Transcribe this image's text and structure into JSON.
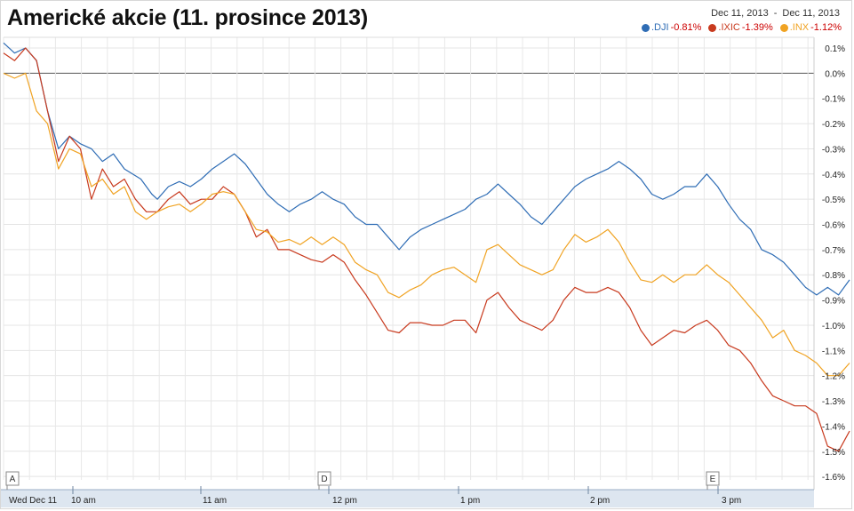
{
  "chart_data": {
    "type": "line",
    "title": "Americké akcie (11. prosince 2013)",
    "date_range": {
      "from": "Dec 11, 2013",
      "separator": "-",
      "to": "Dec 11, 2013"
    },
    "ylim": [
      -1.6,
      0.1
    ],
    "yticks": [
      "0.1%",
      "0.0%",
      "-0.1%",
      "-0.2%",
      "-0.3%",
      "-0.4%",
      "-0.5%",
      "-0.6%",
      "-0.7%",
      "-0.8%",
      "-0.9%",
      "-1.0%",
      "-1.1%",
      "-1.2%",
      "-1.3%",
      "-1.4%",
      "-1.5%",
      "-1.6%"
    ],
    "xticks": [
      "Wed Dec 11",
      "10 am",
      "11 am",
      "12 pm",
      "1 pm",
      "2 pm",
      "3 pm"
    ],
    "flags": [
      "A",
      "D",
      "E"
    ],
    "grid": true,
    "legend_position": "top-right",
    "series": [
      {
        "name": ".DJI",
        "change": "-0.81%",
        "color": "#2f6db5",
        "points": [
          [
            0,
            0.12
          ],
          [
            2,
            0.08
          ],
          [
            4,
            0.1
          ],
          [
            6,
            0.05
          ],
          [
            8,
            -0.15
          ],
          [
            10,
            -0.3
          ],
          [
            12,
            -0.25
          ],
          [
            14,
            -0.28
          ],
          [
            16,
            -0.3
          ],
          [
            18,
            -0.35
          ],
          [
            20,
            -0.32
          ],
          [
            22,
            -0.38
          ],
          [
            25,
            -0.42
          ],
          [
            27,
            -0.48
          ],
          [
            28,
            -0.5
          ],
          [
            30,
            -0.45
          ],
          [
            32,
            -0.43
          ],
          [
            34,
            -0.45
          ],
          [
            36,
            -0.42
          ],
          [
            38,
            -0.38
          ],
          [
            40,
            -0.35
          ],
          [
            42,
            -0.32
          ],
          [
            44,
            -0.36
          ],
          [
            46,
            -0.42
          ],
          [
            48,
            -0.48
          ],
          [
            50,
            -0.52
          ],
          [
            52,
            -0.55
          ],
          [
            54,
            -0.52
          ],
          [
            56,
            -0.5
          ],
          [
            58,
            -0.47
          ],
          [
            60,
            -0.5
          ],
          [
            62,
            -0.52
          ],
          [
            64,
            -0.57
          ],
          [
            66,
            -0.6
          ],
          [
            68,
            -0.6
          ],
          [
            70,
            -0.65
          ],
          [
            72,
            -0.7
          ],
          [
            74,
            -0.65
          ],
          [
            76,
            -0.62
          ],
          [
            78,
            -0.6
          ],
          [
            80,
            -0.58
          ],
          [
            82,
            -0.56
          ],
          [
            84,
            -0.54
          ],
          [
            86,
            -0.5
          ],
          [
            88,
            -0.48
          ],
          [
            90,
            -0.44
          ],
          [
            92,
            -0.48
          ],
          [
            94,
            -0.52
          ],
          [
            96,
            -0.57
          ],
          [
            98,
            -0.6
          ],
          [
            100,
            -0.55
          ],
          [
            102,
            -0.5
          ],
          [
            104,
            -0.45
          ],
          [
            106,
            -0.42
          ],
          [
            108,
            -0.4
          ],
          [
            110,
            -0.38
          ],
          [
            112,
            -0.35
          ],
          [
            114,
            -0.38
          ],
          [
            116,
            -0.42
          ],
          [
            118,
            -0.48
          ],
          [
            120,
            -0.5
          ],
          [
            122,
            -0.48
          ],
          [
            124,
            -0.45
          ],
          [
            126,
            -0.45
          ],
          [
            128,
            -0.4
          ],
          [
            130,
            -0.45
          ],
          [
            132,
            -0.52
          ],
          [
            134,
            -0.58
          ],
          [
            136,
            -0.62
          ],
          [
            138,
            -0.7
          ],
          [
            140,
            -0.72
          ],
          [
            142,
            -0.75
          ],
          [
            144,
            -0.8
          ],
          [
            146,
            -0.85
          ],
          [
            148,
            -0.88
          ],
          [
            150,
            -0.85
          ],
          [
            152,
            -0.88
          ],
          [
            154,
            -0.82
          ]
        ]
      },
      {
        "name": ".IXIC",
        "change": "-1.39%",
        "color": "#c83a1e",
        "points": [
          [
            0,
            0.08
          ],
          [
            2,
            0.05
          ],
          [
            4,
            0.1
          ],
          [
            6,
            0.05
          ],
          [
            8,
            -0.15
          ],
          [
            10,
            -0.35
          ],
          [
            12,
            -0.25
          ],
          [
            14,
            -0.3
          ],
          [
            16,
            -0.5
          ],
          [
            18,
            -0.38
          ],
          [
            20,
            -0.45
          ],
          [
            22,
            -0.42
          ],
          [
            24,
            -0.5
          ],
          [
            26,
            -0.55
          ],
          [
            28,
            -0.55
          ],
          [
            30,
            -0.5
          ],
          [
            32,
            -0.47
          ],
          [
            34,
            -0.52
          ],
          [
            36,
            -0.5
          ],
          [
            38,
            -0.5
          ],
          [
            40,
            -0.45
          ],
          [
            42,
            -0.48
          ],
          [
            44,
            -0.55
          ],
          [
            46,
            -0.65
          ],
          [
            48,
            -0.62
          ],
          [
            50,
            -0.7
          ],
          [
            52,
            -0.7
          ],
          [
            54,
            -0.72
          ],
          [
            56,
            -0.74
          ],
          [
            58,
            -0.75
          ],
          [
            60,
            -0.72
          ],
          [
            62,
            -0.75
          ],
          [
            64,
            -0.82
          ],
          [
            66,
            -0.88
          ],
          [
            68,
            -0.95
          ],
          [
            70,
            -1.02
          ],
          [
            72,
            -1.03
          ],
          [
            74,
            -0.99
          ],
          [
            76,
            -0.99
          ],
          [
            78,
            -1.0
          ],
          [
            80,
            -1.0
          ],
          [
            82,
            -0.98
          ],
          [
            84,
            -0.98
          ],
          [
            86,
            -1.03
          ],
          [
            88,
            -0.9
          ],
          [
            90,
            -0.87
          ],
          [
            92,
            -0.93
          ],
          [
            94,
            -0.98
          ],
          [
            96,
            -1.0
          ],
          [
            98,
            -1.02
          ],
          [
            100,
            -0.98
          ],
          [
            102,
            -0.9
          ],
          [
            104,
            -0.85
          ],
          [
            106,
            -0.87
          ],
          [
            108,
            -0.87
          ],
          [
            110,
            -0.85
          ],
          [
            112,
            -0.87
          ],
          [
            114,
            -0.93
          ],
          [
            116,
            -1.02
          ],
          [
            118,
            -1.08
          ],
          [
            120,
            -1.05
          ],
          [
            122,
            -1.02
          ],
          [
            124,
            -1.03
          ],
          [
            126,
            -1.0
          ],
          [
            128,
            -0.98
          ],
          [
            130,
            -1.02
          ],
          [
            132,
            -1.08
          ],
          [
            134,
            -1.1
          ],
          [
            136,
            -1.15
          ],
          [
            138,
            -1.22
          ],
          [
            140,
            -1.28
          ],
          [
            142,
            -1.3
          ],
          [
            144,
            -1.32
          ],
          [
            146,
            -1.32
          ],
          [
            148,
            -1.35
          ],
          [
            150,
            -1.48
          ],
          [
            152,
            -1.5
          ],
          [
            154,
            -1.42
          ]
        ]
      },
      {
        "name": ".INX",
        "change": "-1.12%",
        "color": "#f0a323",
        "points": [
          [
            0,
            0.0
          ],
          [
            2,
            -0.02
          ],
          [
            4,
            0.0
          ],
          [
            6,
            -0.15
          ],
          [
            8,
            -0.2
          ],
          [
            10,
            -0.38
          ],
          [
            12,
            -0.3
          ],
          [
            14,
            -0.32
          ],
          [
            16,
            -0.45
          ],
          [
            18,
            -0.42
          ],
          [
            20,
            -0.48
          ],
          [
            22,
            -0.45
          ],
          [
            24,
            -0.55
          ],
          [
            26,
            -0.58
          ],
          [
            28,
            -0.55
          ],
          [
            30,
            -0.53
          ],
          [
            32,
            -0.52
          ],
          [
            34,
            -0.55
          ],
          [
            36,
            -0.52
          ],
          [
            38,
            -0.48
          ],
          [
            40,
            -0.47
          ],
          [
            42,
            -0.48
          ],
          [
            44,
            -0.55
          ],
          [
            46,
            -0.62
          ],
          [
            48,
            -0.63
          ],
          [
            50,
            -0.67
          ],
          [
            52,
            -0.66
          ],
          [
            54,
            -0.68
          ],
          [
            56,
            -0.65
          ],
          [
            58,
            -0.68
          ],
          [
            60,
            -0.65
          ],
          [
            62,
            -0.68
          ],
          [
            64,
            -0.75
          ],
          [
            66,
            -0.78
          ],
          [
            68,
            -0.8
          ],
          [
            70,
            -0.87
          ],
          [
            72,
            -0.89
          ],
          [
            74,
            -0.86
          ],
          [
            76,
            -0.84
          ],
          [
            78,
            -0.8
          ],
          [
            80,
            -0.78
          ],
          [
            82,
            -0.77
          ],
          [
            84,
            -0.8
          ],
          [
            86,
            -0.83
          ],
          [
            88,
            -0.7
          ],
          [
            90,
            -0.68
          ],
          [
            92,
            -0.72
          ],
          [
            94,
            -0.76
          ],
          [
            96,
            -0.78
          ],
          [
            98,
            -0.8
          ],
          [
            100,
            -0.78
          ],
          [
            102,
            -0.7
          ],
          [
            104,
            -0.64
          ],
          [
            106,
            -0.67
          ],
          [
            108,
            -0.65
          ],
          [
            110,
            -0.62
          ],
          [
            112,
            -0.67
          ],
          [
            114,
            -0.75
          ],
          [
            116,
            -0.82
          ],
          [
            118,
            -0.83
          ],
          [
            120,
            -0.8
          ],
          [
            122,
            -0.83
          ],
          [
            124,
            -0.8
          ],
          [
            126,
            -0.8
          ],
          [
            128,
            -0.76
          ],
          [
            130,
            -0.8
          ],
          [
            132,
            -0.83
          ],
          [
            134,
            -0.88
          ],
          [
            136,
            -0.93
          ],
          [
            138,
            -0.98
          ],
          [
            140,
            -1.05
          ],
          [
            142,
            -1.02
          ],
          [
            144,
            -1.1
          ],
          [
            146,
            -1.12
          ],
          [
            148,
            -1.15
          ],
          [
            150,
            -1.2
          ],
          [
            152,
            -1.2
          ],
          [
            154,
            -1.15
          ]
        ]
      }
    ]
  }
}
